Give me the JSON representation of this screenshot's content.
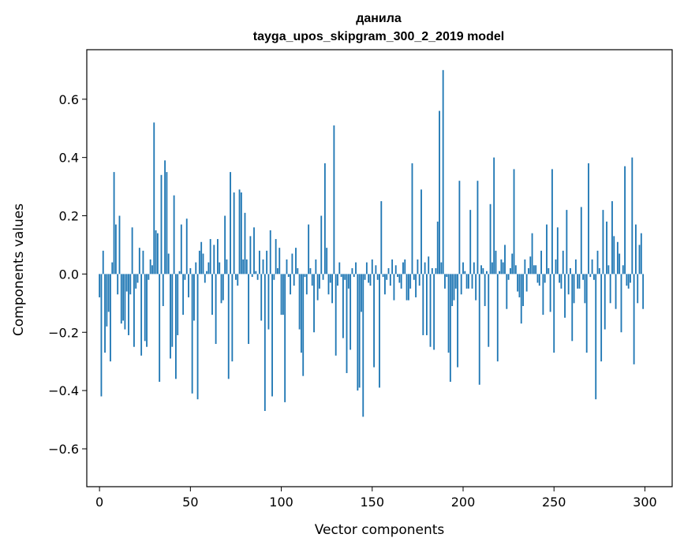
{
  "chart_data": {
    "type": "bar",
    "title": "данила",
    "subtitle": "tayga_upos_skipgram_300_2_2019 model",
    "xlabel": "Vector components",
    "ylabel": "Components values",
    "xlim": [
      -7,
      315
    ],
    "ylim": [
      -0.73,
      0.77
    ],
    "xticks": [
      0,
      50,
      100,
      150,
      200,
      250,
      300
    ],
    "yticks": [
      -0.6,
      -0.4,
      -0.2,
      0.0,
      0.2,
      0.4,
      0.6
    ],
    "ytick_labels": [
      "−0.6",
      "−0.4",
      "−0.2",
      "0.0",
      "0.2",
      "0.4",
      "0.6"
    ],
    "bar_color": "#1f77b4",
    "grid": false,
    "x_start": 0,
    "values": [
      -0.08,
      -0.42,
      0.08,
      -0.27,
      -0.18,
      -0.13,
      -0.3,
      0.04,
      0.35,
      0.17,
      -0.07,
      0.2,
      -0.17,
      -0.16,
      -0.19,
      -0.06,
      -0.21,
      -0.07,
      0.16,
      -0.25,
      -0.05,
      -0.03,
      0.09,
      -0.28,
      0.08,
      -0.23,
      -0.25,
      -0.02,
      0.05,
      0.03,
      0.52,
      0.15,
      0.14,
      -0.37,
      0.34,
      -0.11,
      0.39,
      0.35,
      0.07,
      -0.29,
      -0.25,
      0.27,
      -0.36,
      -0.21,
      0.01,
      0.17,
      -0.14,
      -0.02,
      0.19,
      -0.08,
      0.02,
      -0.41,
      -0.16,
      0.04,
      -0.43,
      0.08,
      0.11,
      0.07,
      -0.03,
      0.01,
      0.04,
      0.12,
      -0.14,
      0.1,
      -0.24,
      0.12,
      0.04,
      -0.1,
      -0.09,
      0.2,
      0.05,
      -0.36,
      0.35,
      -0.3,
      0.28,
      -0.02,
      -0.04,
      0.29,
      0.28,
      0.05,
      0.21,
      0.05,
      -0.24,
      0.13,
      -0.01,
      0.16,
      0.01,
      -0.02,
      0.08,
      -0.16,
      0.05,
      -0.47,
      0.08,
      -0.19,
      0.15,
      -0.42,
      -0.02,
      0.12,
      0.02,
      0.09,
      -0.14,
      -0.14,
      -0.44,
      0.05,
      -0.01,
      -0.07,
      0.07,
      -0.04,
      0.09,
      0.02,
      -0.19,
      -0.27,
      -0.35,
      -0.01,
      -0.07,
      0.17,
      0.02,
      -0.04,
      -0.2,
      0.05,
      -0.09,
      -0.05,
      0.2,
      -0.02,
      0.38,
      0.09,
      -0.07,
      -0.03,
      -0.1,
      0.51,
      -0.28,
      -0.04,
      0.04,
      -0.01,
      -0.22,
      -0.02,
      -0.34,
      -0.05,
      -0.26,
      0.02,
      -0.01,
      0.04,
      -0.4,
      -0.39,
      -0.13,
      -0.49,
      -0.02,
      0.04,
      -0.03,
      -0.04,
      0.05,
      -0.32,
      0.03,
      -0.02,
      -0.39,
      0.25,
      -0.01,
      -0.07,
      -0.02,
      0.02,
      -0.04,
      0.05,
      -0.09,
      0.03,
      -0.01,
      -0.03,
      -0.05,
      0.04,
      0.05,
      -0.09,
      -0.09,
      -0.05,
      0.38,
      -0.02,
      -0.08,
      0.05,
      -0.04,
      0.29,
      -0.21,
      0.04,
      -0.21,
      0.06,
      -0.25,
      0.02,
      -0.26,
      0.02,
      0.18,
      0.56,
      0.04,
      0.7,
      -0.05,
      -0.01,
      -0.27,
      -0.37,
      -0.11,
      -0.09,
      -0.05,
      -0.32,
      0.32,
      -0.07,
      0.04,
      0.01,
      -0.05,
      -0.05,
      0.22,
      -0.05,
      0.04,
      -0.09,
      0.32,
      -0.38,
      0.03,
      0.02,
      -0.11,
      0.01,
      -0.25,
      0.24,
      0.04,
      0.4,
      0.08,
      -0.3,
      0.01,
      0.05,
      0.04,
      0.1,
      -0.12,
      -0.02,
      0.02,
      0.07,
      0.36,
      0.03,
      -0.06,
      -0.08,
      -0.17,
      -0.11,
      0.05,
      -0.06,
      0.02,
      0.06,
      0.14,
      0.03,
      0.03,
      -0.03,
      -0.04,
      0.08,
      -0.14,
      -0.03,
      0.17,
      0.02,
      -0.13,
      0.36,
      -0.27,
      0.05,
      0.16,
      -0.03,
      -0.05,
      0.08,
      -0.15,
      0.22,
      -0.07,
      0.02,
      -0.23,
      -0.1,
      0.05,
      -0.05,
      -0.05,
      0.23,
      -0.02,
      -0.1,
      -0.27,
      0.38,
      -0.01,
      0.05,
      -0.02,
      -0.43,
      0.08,
      0.02,
      -0.3,
      0.22,
      -0.19,
      0.18,
      0.03,
      -0.1,
      0.25,
      0.13,
      -0.12,
      0.11,
      0.07,
      -0.2,
      0.03,
      0.37,
      -0.04,
      -0.05,
      -0.03,
      0.4,
      -0.31,
      0.17,
      -0.1,
      0.1,
      0.14,
      -0.12
    ]
  }
}
